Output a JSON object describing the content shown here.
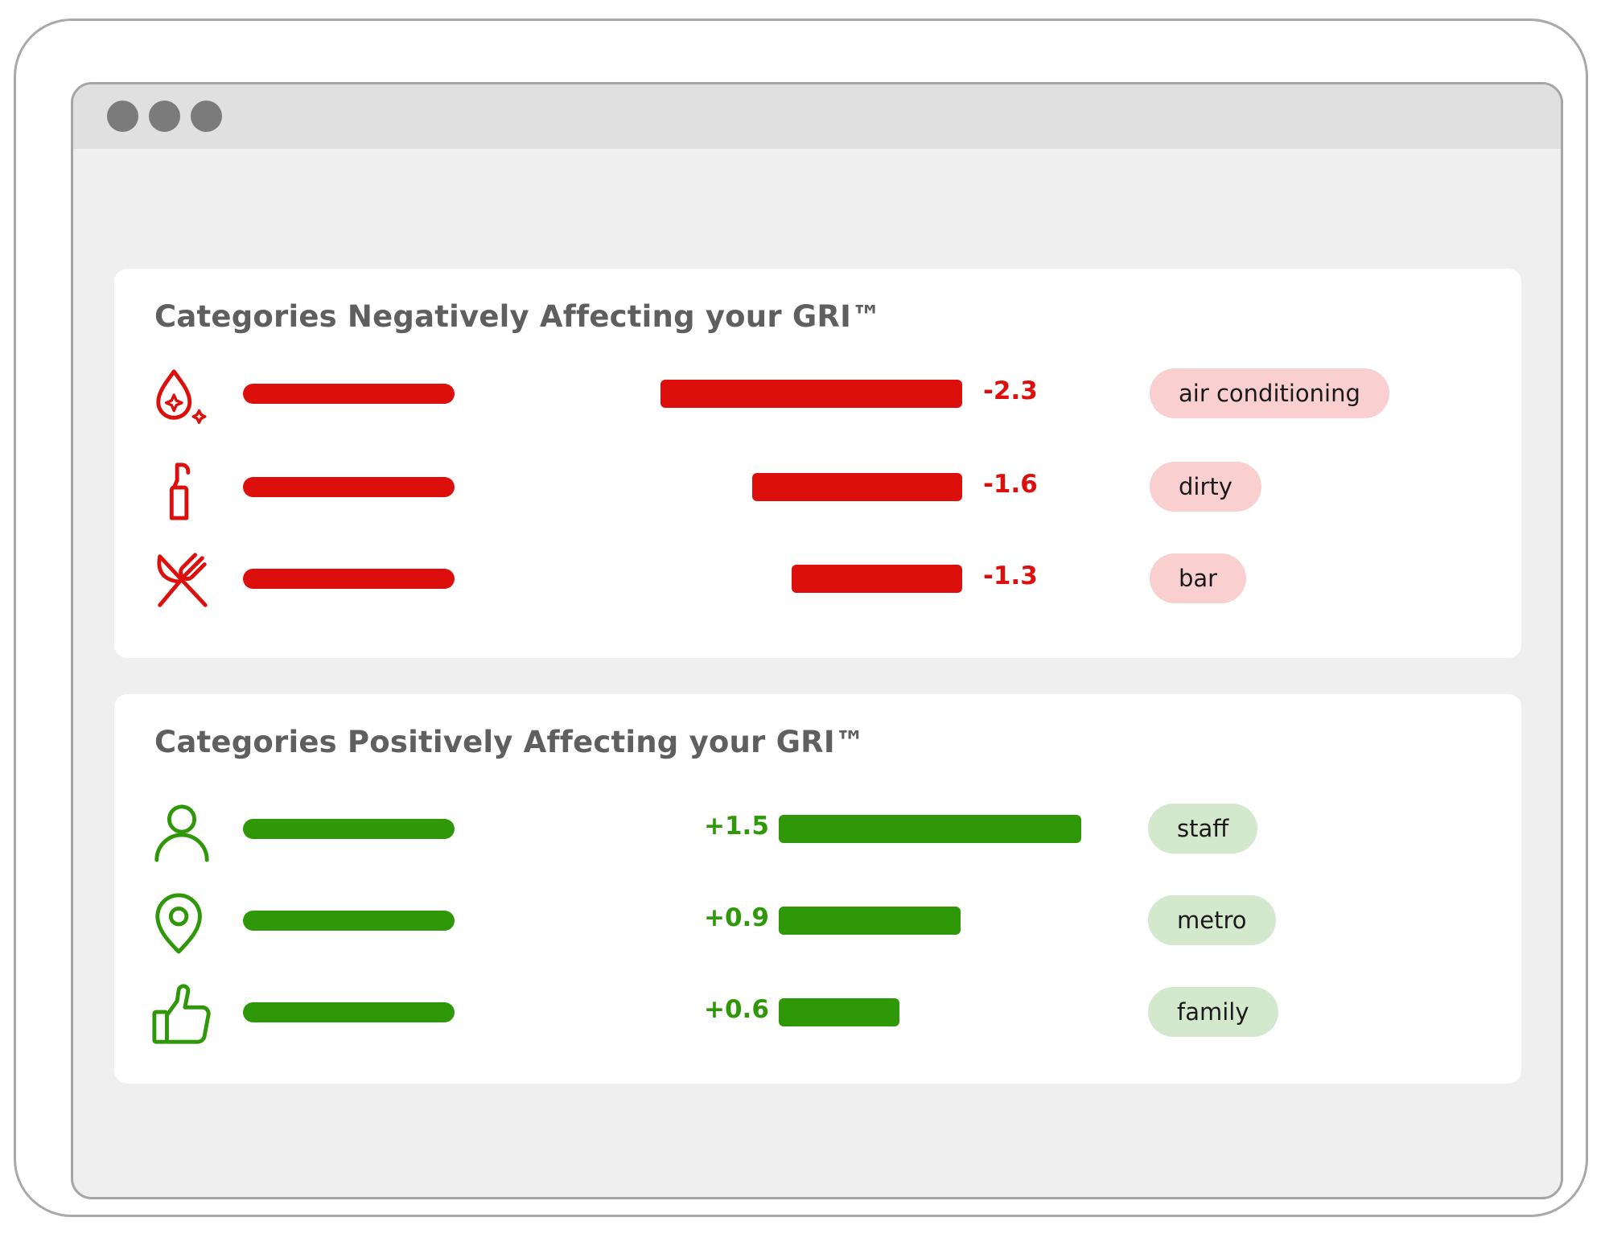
{
  "colors": {
    "negative": "#dd0f0d",
    "negative_tag_bg": "#f9cfcf",
    "positive": "#2f9809",
    "positive_tag_bg": "#d3e8cd"
  },
  "negative_panel": {
    "title": "Categories Negatively Affecting your GRI™",
    "scale_max": 2.3,
    "items": [
      {
        "icon": "water-drop-sparkle-icon",
        "value": -2.3,
        "value_label": "-2.3",
        "tag": "air conditioning"
      },
      {
        "icon": "spray-bottle-icon",
        "value": -1.6,
        "value_label": "-1.6",
        "tag": "dirty"
      },
      {
        "icon": "fork-knife-icon",
        "value": -1.3,
        "value_label": "-1.3",
        "tag": "bar"
      }
    ]
  },
  "positive_panel": {
    "title": "Categories Positively Affecting your GRI™",
    "scale_max": 1.5,
    "items": [
      {
        "icon": "person-icon",
        "value": 1.5,
        "value_label": "+1.5",
        "tag": "staff"
      },
      {
        "icon": "location-pin-icon",
        "value": 0.9,
        "value_label": "+0.9",
        "tag": "metro"
      },
      {
        "icon": "thumbs-up-icon",
        "value": 0.6,
        "value_label": "+0.6",
        "tag": "family"
      }
    ]
  }
}
